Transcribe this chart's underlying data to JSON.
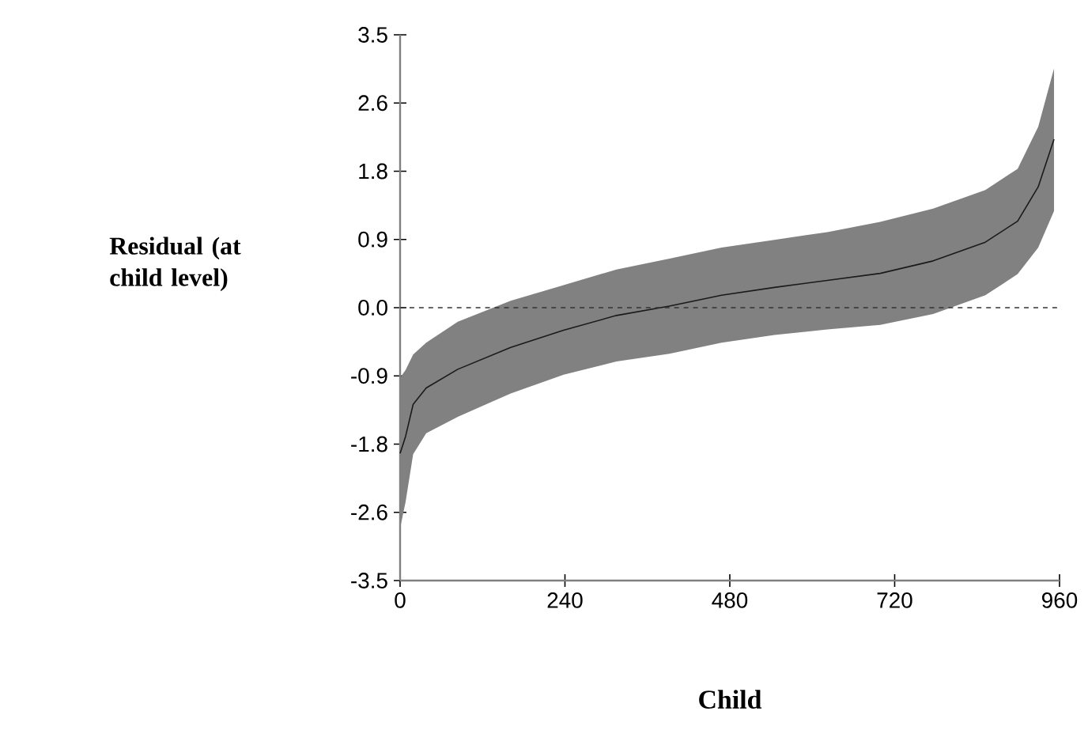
{
  "chart_data": {
    "type": "line",
    "xlabel": "Child",
    "ylabel": "Residual (at child level)",
    "xlim": [
      0,
      960
    ],
    "xticks": [
      0,
      240,
      480,
      720,
      960
    ],
    "ylim": [
      -3.5,
      3.5
    ],
    "yticks": [
      {
        "value": -3.5,
        "label": "-3.5"
      },
      {
        "value": -2.625,
        "label": "-2.6"
      },
      {
        "value": -1.75,
        "label": "-1.8"
      },
      {
        "value": -0.875,
        "label": "-0.9"
      },
      {
        "value": 0,
        "label": "0.0"
      },
      {
        "value": 0.875,
        "label": "0.9"
      },
      {
        "value": 1.75,
        "label": "1.8"
      },
      {
        "value": 2.625,
        "label": "2.6"
      },
      {
        "value": 3.5,
        "label": "3.5"
      }
    ],
    "x": [
      0,
      8,
      19,
      38,
      84,
      161,
      238,
      315,
      392,
      468,
      545,
      622,
      699,
      776,
      852,
      899,
      929,
      952
    ],
    "series": [
      {
        "color": "#1a1a1a",
        "values": [
          -1.87,
          -1.65,
          -1.24,
          -1.03,
          -0.79,
          -0.51,
          -0.29,
          -0.1,
          0.02,
          0.16,
          0.26,
          0.35,
          0.44,
          0.6,
          0.84,
          1.11,
          1.55,
          2.16
        ],
        "upper": [
          -0.9,
          -0.8,
          -0.6,
          -0.45,
          -0.18,
          0.09,
          0.29,
          0.49,
          0.63,
          0.77,
          0.87,
          0.97,
          1.1,
          1.27,
          1.51,
          1.78,
          2.32,
          3.07
        ],
        "lower": [
          -2.83,
          -2.49,
          -1.88,
          -1.61,
          -1.4,
          -1.1,
          -0.86,
          -0.69,
          -0.59,
          -0.45,
          -0.35,
          -0.28,
          -0.22,
          -0.08,
          0.16,
          0.43,
          0.77,
          1.24
        ]
      }
    ],
    "ref_lines": [
      {
        "axis": "y",
        "value": 0,
        "line_style": "dashed",
        "color": "#333333"
      }
    ],
    "grid": false,
    "marker": "none",
    "line_style": "solid"
  }
}
